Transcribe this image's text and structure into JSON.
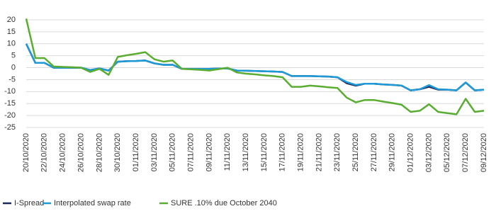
{
  "chart_data": {
    "type": "line",
    "categories": [
      "20/10/2020",
      null,
      "22/10/2020",
      null,
      "24/10/2020",
      null,
      "26/10/2020",
      null,
      "28/10/2020",
      null,
      "30/10/2020",
      null,
      "01/11/2020",
      null,
      "03/11/2020",
      null,
      "05/11/2020",
      null,
      "07/11/2020",
      null,
      "09/11/2020",
      null,
      "11/11/2020",
      null,
      "13/11/2020",
      null,
      "15/11/2020",
      null,
      "17/11/2020",
      null,
      "19/11/2020",
      null,
      "21/11/2020",
      null,
      "23/11/2020",
      null,
      "25/11/2020",
      null,
      "27/11/2020",
      null,
      "29/11/2020",
      null,
      "01/12/2020",
      null,
      "03/12/2020",
      null,
      "05/12/2020",
      null,
      "07/12/2020",
      null,
      "09/12/2020"
    ],
    "series": [
      {
        "name": "I-Spread",
        "color": "#1c2a5a",
        "values": [
          10,
          2,
          2,
          0,
          0,
          0,
          0,
          -1,
          -0.3,
          -1.2,
          2.5,
          2.7,
          2.8,
          3,
          1.8,
          1.2,
          1.2,
          -0.5,
          -0.5,
          -0.5,
          -0.5,
          -0.4,
          -0.3,
          -1.2,
          -1.3,
          -1.4,
          -1.5,
          -1.6,
          -1.8,
          -3.5,
          -3.5,
          -3.5,
          -3.6,
          -3.7,
          -4,
          -6.5,
          -7.5,
          -6.7,
          -6.7,
          -7,
          -7.2,
          -7.5,
          -9.5,
          -9,
          -8,
          -9.2,
          -9.2,
          -9.5,
          -6.2,
          -9.5,
          -9.2
        ]
      },
      {
        "name": "Interpolated swap rate",
        "color": "#1e9ad6",
        "values": [
          10,
          2,
          2,
          0,
          0,
          0,
          0,
          -1,
          -0.3,
          -1.2,
          2.5,
          2.7,
          2.8,
          3,
          1.8,
          1.2,
          1.2,
          -0.5,
          -0.5,
          -0.5,
          -0.5,
          -0.4,
          -0.3,
          -1.2,
          -1.3,
          -1.4,
          -1.5,
          -1.6,
          -1.8,
          -3.5,
          -3.5,
          -3.5,
          -3.6,
          -3.7,
          -4,
          -6,
          -7.2,
          -6.7,
          -6.7,
          -7,
          -7.2,
          -7.5,
          -9.5,
          -9,
          -7.3,
          -9,
          -9.2,
          -9.5,
          -6.2,
          -9.5,
          -9.2
        ]
      },
      {
        "name": "SURE .10% due October 2040",
        "color": "#5aad32",
        "values": [
          20.5,
          4,
          4,
          0.5,
          0.3,
          0.2,
          0,
          -1.8,
          -0.5,
          -3,
          4.5,
          5.2,
          5.8,
          6.5,
          3.5,
          2.5,
          3,
          -0.5,
          -0.7,
          -0.9,
          -1.2,
          -0.6,
          0,
          -2,
          -2.5,
          -2.8,
          -3.2,
          -3.5,
          -4,
          -8,
          -8,
          -7.5,
          -7.8,
          -8.2,
          -8.5,
          -12.5,
          -14.5,
          -13.5,
          -13.5,
          -14.2,
          -14.8,
          -15.5,
          -18.5,
          -18,
          -15.3,
          -18.5,
          -19,
          -19.5,
          -13,
          -18.5,
          -18
        ]
      }
    ],
    "ylim": [
      -25,
      20
    ],
    "yticks": [
      -25,
      -20,
      -15,
      -10,
      -5,
      0,
      5,
      10,
      15,
      20
    ],
    "grid": true
  }
}
